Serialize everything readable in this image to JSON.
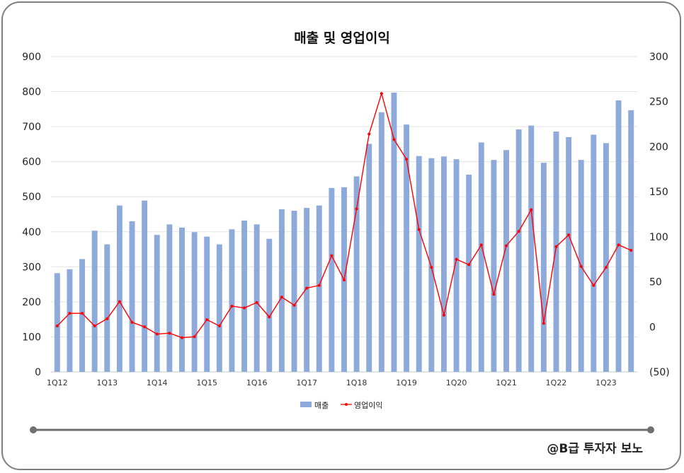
{
  "chart_data": {
    "type": "bar",
    "title": "매출 및 영업이익",
    "x": [
      "1Q12",
      "2Q12",
      "3Q12",
      "4Q12",
      "1Q13",
      "2Q13",
      "3Q13",
      "4Q13",
      "1Q14",
      "2Q14",
      "3Q14",
      "4Q14",
      "1Q15",
      "2Q15",
      "3Q15",
      "4Q15",
      "1Q16",
      "2Q16",
      "3Q16",
      "4Q16",
      "1Q17",
      "2Q17",
      "3Q17",
      "4Q17",
      "1Q18",
      "2Q18",
      "3Q18",
      "4Q18",
      "1Q19",
      "2Q19",
      "3Q19",
      "4Q19",
      "1Q20",
      "2Q20",
      "3Q20",
      "4Q20",
      "1Q21",
      "2Q21",
      "3Q21",
      "4Q21",
      "1Q22",
      "2Q22",
      "3Q22",
      "4Q22",
      "1Q23",
      "2Q23",
      "3Q23"
    ],
    "x_tick_labels": [
      "1Q12",
      "1Q13",
      "1Q14",
      "1Q15",
      "1Q16",
      "1Q17",
      "1Q18",
      "1Q19",
      "1Q20",
      "1Q21",
      "1Q22",
      "1Q23"
    ],
    "series": [
      {
        "name": "매출",
        "type": "bar",
        "axis": "left",
        "color": "#8eaadb",
        "values": [
          282,
          293,
          322,
          403,
          364,
          475,
          430,
          489,
          391,
          421,
          412,
          399,
          386,
          364,
          407,
          432,
          421,
          380,
          464,
          460,
          468,
          475,
          525,
          527,
          558,
          651,
          741,
          797,
          706,
          616,
          610,
          615,
          607,
          563,
          655,
          605,
          633,
          692,
          703,
          597,
          686,
          670,
          605,
          677,
          653,
          775,
          747
        ]
      },
      {
        "name": "영업이익",
        "type": "line",
        "axis": "right",
        "color": "#ff0000",
        "values": [
          1,
          15,
          15,
          1,
          9,
          28,
          5,
          0,
          -8,
          -7,
          -12,
          -11,
          8,
          1,
          23,
          21,
          27,
          11,
          33,
          24,
          43,
          46,
          79,
          52,
          131,
          214,
          259,
          208,
          186,
          108,
          66,
          13,
          75,
          69,
          91,
          36,
          90,
          106,
          130,
          4,
          89,
          102,
          67,
          46,
          66,
          91,
          85
        ]
      }
    ],
    "y_left": {
      "min": 0,
      "max": 900,
      "ticks": [
        "0",
        "100",
        "200",
        "300",
        "400",
        "500",
        "600",
        "700",
        "800",
        "900"
      ]
    },
    "y_right": {
      "min": -50,
      "max": 300,
      "ticks": [
        "(50)",
        "0",
        "50",
        "100",
        "150",
        "200",
        "250",
        "300"
      ],
      "negative_color": "#ff0000"
    },
    "grid": true,
    "legend": {
      "position": "bottom",
      "items": [
        "매출",
        "영업이익"
      ]
    }
  },
  "footer": {
    "brand": "@B급 투자자 보노"
  }
}
